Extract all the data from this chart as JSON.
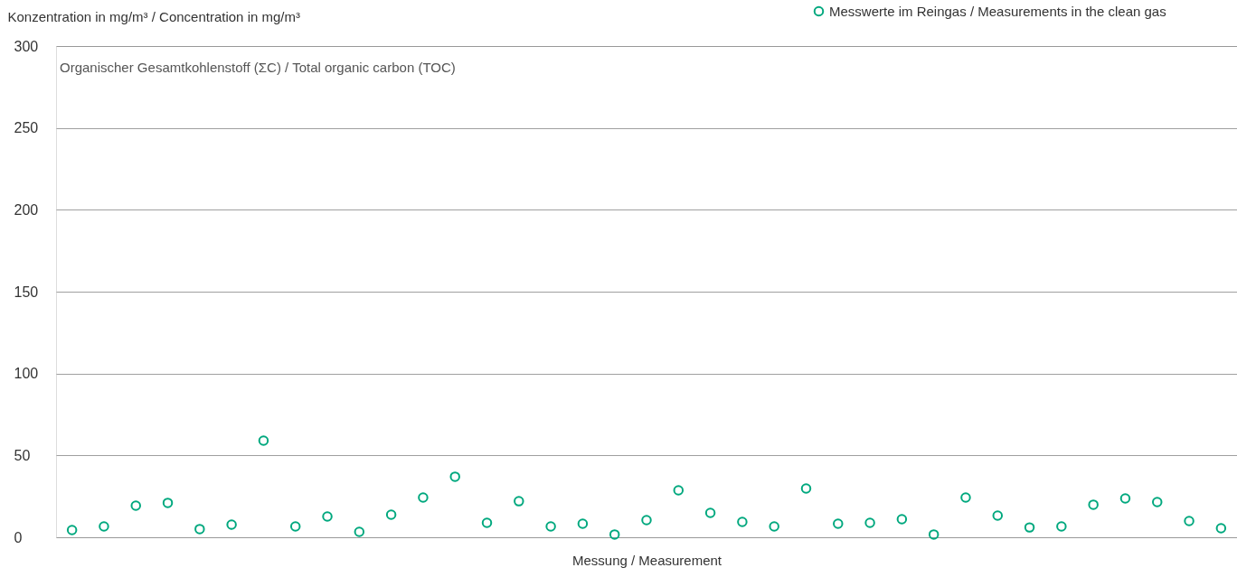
{
  "chart_data": {
    "type": "scatter",
    "title": "Organischer Gesamtkohlenstoff (ΣC) / Total organic carbon (TOC)",
    "ylabel": "Konzentration in mg/m³ / Concentration in mg/m³",
    "xlabel": "Messung / Measurement",
    "categories": [
      null,
      null,
      null,
      null,
      null,
      null,
      null,
      null,
      null,
      null,
      null,
      null,
      null,
      null,
      null,
      null,
      null,
      null,
      null,
      null,
      null,
      null,
      null,
      null,
      null,
      null,
      null,
      null,
      null,
      null,
      null,
      null,
      null,
      null,
      null,
      null,
      null
    ],
    "series": [
      {
        "name": "Messwerte im Reingas / Measurements in the clean gas",
        "color": "#00a87e",
        "values": [
          4.4,
          6.6,
          19.3,
          21,
          5,
          7.7,
          59,
          6.6,
          12.7,
          3.3,
          13.8,
          24.3,
          37,
          8.8,
          22,
          6.6,
          8.3,
          1.7,
          10.5,
          28.7,
          14.9,
          9.4,
          6.6,
          29.8,
          8.3,
          8.8,
          11,
          1.7,
          24.3,
          13.2,
          6,
          6.6,
          19.9,
          23.7,
          21.5,
          9.9,
          5.5
        ]
      }
    ],
    "ylim": [
      0,
      300
    ],
    "yticks": [
      0,
      50,
      100,
      150,
      200,
      250,
      300
    ],
    "grid": "y",
    "legend": "top right",
    "marker": "circle"
  }
}
